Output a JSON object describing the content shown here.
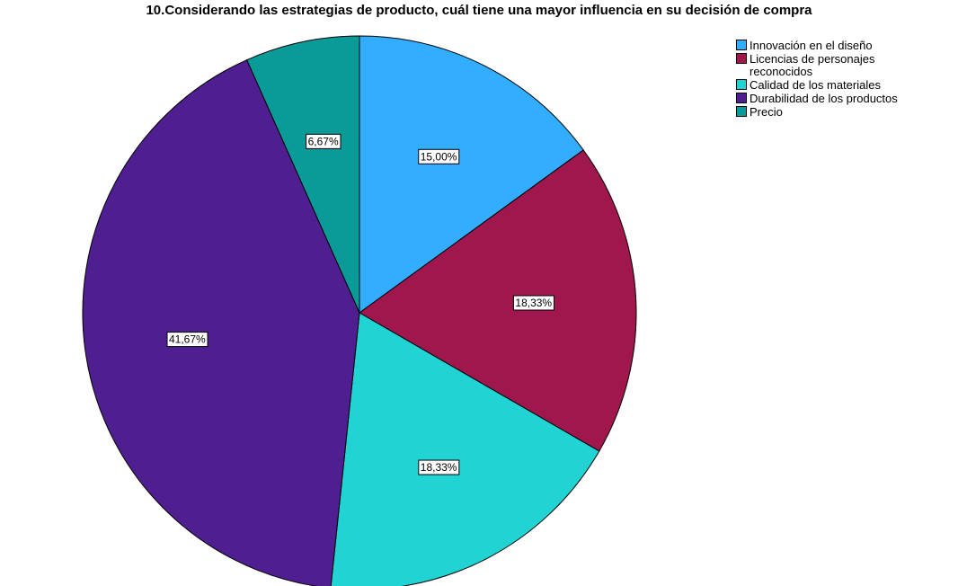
{
  "chart_data": {
    "type": "pie",
    "title": "10.Considerando las estrategias de producto, cuál tiene una mayor influencia en su decisión de compra",
    "categories": [
      "Innovación en el diseño",
      "Licencias de personajes reconocidos",
      "Calidad de los materiales",
      "Durabilidad de los productos",
      "Precio"
    ],
    "values": [
      15.0,
      18.33,
      18.33,
      41.67,
      6.67
    ],
    "value_labels": [
      "15,00%",
      "18,33%",
      "18,33%",
      "41,67%",
      "6,67%"
    ],
    "colors": [
      "#33adff",
      "#a0174d",
      "#22d3d3",
      "#4f1f91",
      "#0a9a98"
    ],
    "legend": "top-right"
  }
}
